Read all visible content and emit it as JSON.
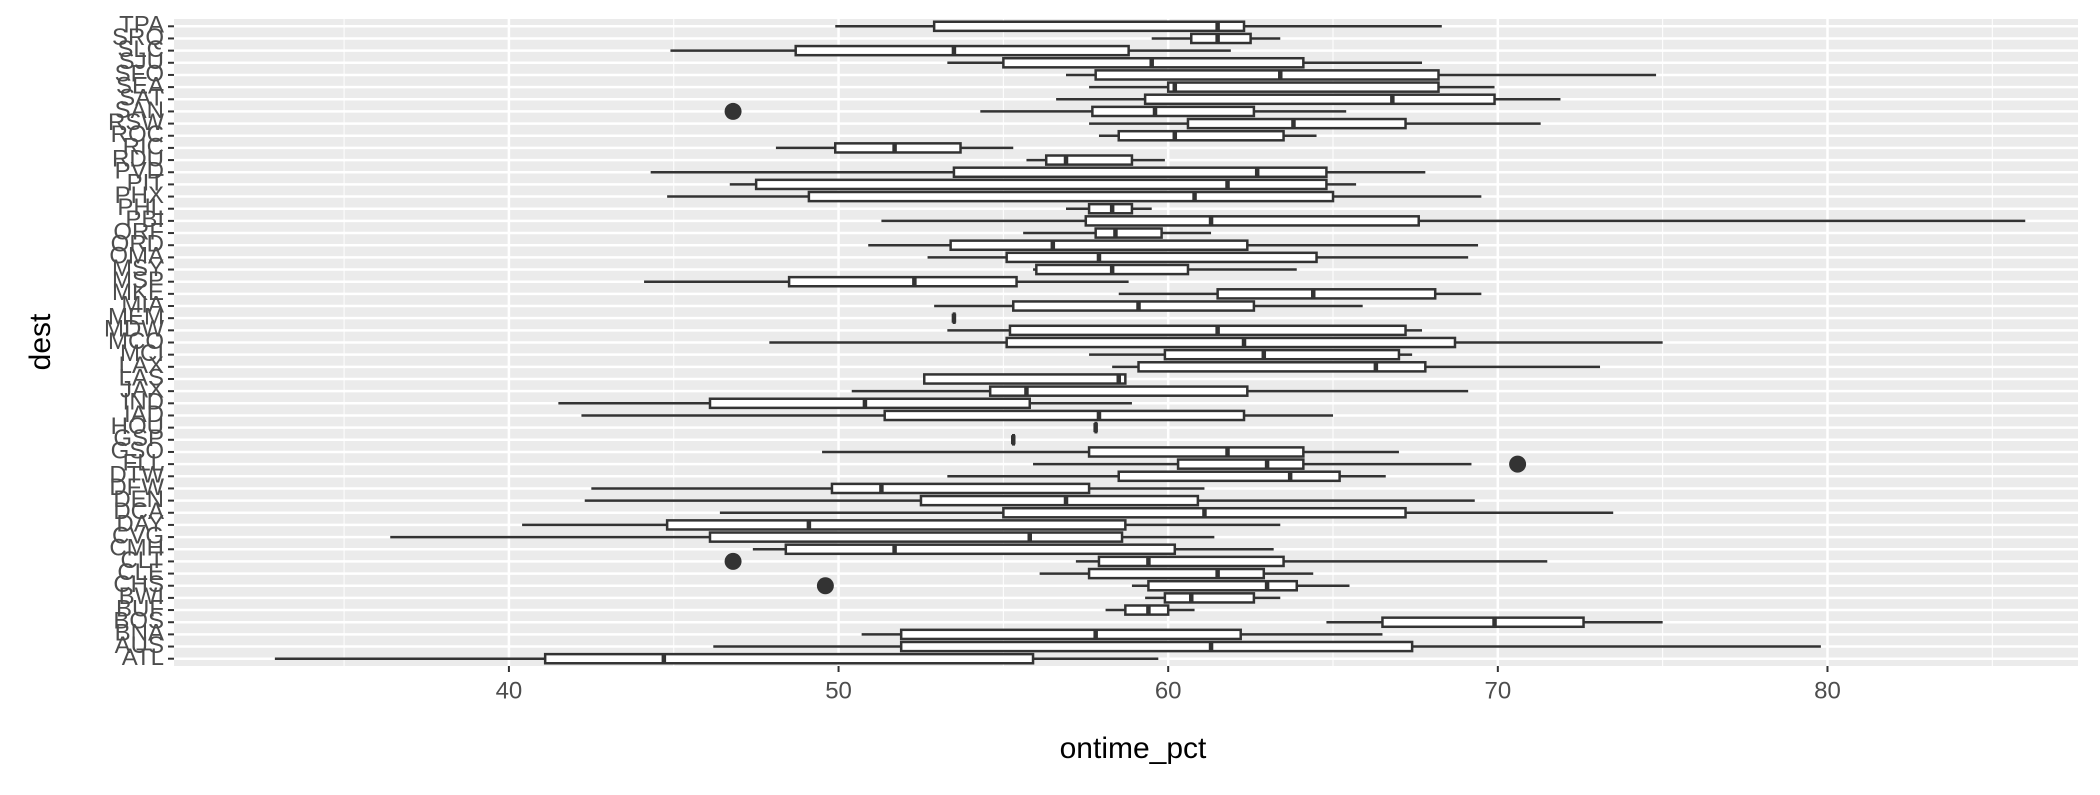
{
  "chart_data": {
    "type": "boxplot",
    "orientation": "horizontal",
    "x_label": "ontime_pct",
    "y_label": "dest",
    "categories": [
      "ATL",
      "AUS",
      "BNA",
      "BOS",
      "BUF",
      "BWI",
      "CHS",
      "CLE",
      "CLT",
      "CMH",
      "CVG",
      "DAY",
      "DCA",
      "DEN",
      "DFW",
      "DTW",
      "FLL",
      "GSO",
      "GSP",
      "HOU",
      "IAD",
      "IND",
      "JAX",
      "LAS",
      "LAX",
      "MCI",
      "MCO",
      "MDW",
      "MEM",
      "MIA",
      "MKE",
      "MSP",
      "MSY",
      "OMA",
      "ORD",
      "ORF",
      "PBI",
      "PHL",
      "PHX",
      "PIT",
      "PVD",
      "RDU",
      "RIC",
      "ROC",
      "RSW",
      "SAN",
      "SAT",
      "SEA",
      "SFO",
      "SJU",
      "SLC",
      "SRQ",
      "TPA"
    ],
    "low": [
      32.9,
      46.2,
      50.7,
      64.8,
      58.1,
      59.3,
      58.9,
      56.1,
      57.2,
      47.4,
      36.4,
      40.4,
      46.4,
      42.3,
      42.5,
      53.3,
      55.9,
      49.5,
      55.3,
      57.8,
      42.2,
      41.5,
      50.4,
      54.8,
      58.3,
      57.6,
      47.9,
      53.3,
      53.5,
      52.9,
      58.5,
      44.1,
      55.9,
      52.7,
      50.9,
      55.6,
      51.3,
      56.9,
      44.8,
      46.7,
      44.3,
      55.7,
      48.1,
      57.9,
      57.6,
      54.3,
      56.6,
      57.6,
      56.9,
      53.3,
      44.9,
      59.5,
      49.9
    ],
    "q1": [
      41.1,
      51.9,
      51.9,
      66.5,
      58.7,
      59.9,
      59.4,
      57.6,
      57.9,
      48.4,
      46.1,
      44.8,
      55.0,
      52.5,
      49.8,
      58.5,
      60.3,
      57.6,
      55.3,
      57.8,
      51.4,
      46.1,
      54.6,
      52.6,
      59.1,
      59.9,
      55.1,
      55.2,
      53.5,
      55.3,
      61.5,
      48.5,
      56.0,
      55.1,
      53.4,
      57.8,
      57.5,
      57.6,
      49.1,
      47.5,
      53.5,
      56.3,
      49.9,
      58.5,
      60.6,
      57.7,
      59.3,
      60.0,
      57.8,
      55.0,
      48.7,
      60.7,
      52.9
    ],
    "median": [
      44.7,
      61.3,
      57.8,
      69.9,
      59.4,
      60.7,
      63.0,
      61.5,
      59.4,
      51.7,
      55.8,
      49.1,
      61.1,
      56.9,
      51.3,
      63.7,
      63.0,
      61.8,
      55.3,
      57.8,
      57.9,
      50.8,
      55.7,
      58.5,
      66.3,
      62.9,
      62.3,
      61.5,
      53.5,
      59.1,
      64.4,
      52.3,
      58.3,
      57.9,
      56.5,
      58.4,
      61.3,
      58.3,
      60.8,
      61.8,
      62.7,
      56.9,
      51.7,
      60.2,
      63.8,
      59.6,
      66.8,
      60.2,
      63.4,
      59.5,
      53.5,
      61.5,
      61.5
    ],
    "q3": [
      55.9,
      67.4,
      62.2,
      72.6,
      60.0,
      62.6,
      63.9,
      62.9,
      63.5,
      60.2,
      58.6,
      58.7,
      67.2,
      60.9,
      57.6,
      65.2,
      64.1,
      64.1,
      55.3,
      57.8,
      62.3,
      55.8,
      62.4,
      58.7,
      67.8,
      67.0,
      68.7,
      67.2,
      53.5,
      62.6,
      68.1,
      55.4,
      60.6,
      64.5,
      62.4,
      59.8,
      67.6,
      58.9,
      65.0,
      64.8,
      64.8,
      58.9,
      53.7,
      63.5,
      67.2,
      62.6,
      69.9,
      68.2,
      68.2,
      64.1,
      58.8,
      62.5,
      62.3
    ],
    "high": [
      59.7,
      79.8,
      66.5,
      75.0,
      60.8,
      63.4,
      65.5,
      64.4,
      71.5,
      63.2,
      61.4,
      63.4,
      73.5,
      69.3,
      61.1,
      66.6,
      69.2,
      67.0,
      55.3,
      57.8,
      65.0,
      58.9,
      69.1,
      58.7,
      73.1,
      67.4,
      75.0,
      67.7,
      53.5,
      65.9,
      69.5,
      58.8,
      63.9,
      69.1,
      69.4,
      61.3,
      86.0,
      59.5,
      69.5,
      65.7,
      67.8,
      59.9,
      55.3,
      64.5,
      71.3,
      65.4,
      71.9,
      69.9,
      74.8,
      67.7,
      61.9,
      63.4,
      68.3
    ],
    "outliers": [
      [],
      [],
      [],
      [],
      [],
      [],
      [
        49.6
      ],
      [],
      [
        46.8
      ],
      [],
      [],
      [],
      [],
      [],
      [],
      [],
      [
        70.6
      ],
      [],
      [],
      [],
      [],
      [],
      [],
      [],
      [],
      [],
      [],
      [],
      [],
      [],
      [],
      [],
      [],
      [],
      [],
      [],
      [],
      [],
      [],
      [],
      [],
      [],
      [],
      [],
      [],
      [
        46.8
      ],
      [],
      [],
      [],
      [],
      [],
      [],
      []
    ],
    "box_fill": "#ffffff",
    "line_color": "#333333",
    "panel_color": "#ebebeb",
    "xlim": [
      29.84,
      87.6
    ],
    "xticks": [
      40,
      50,
      60,
      70,
      80
    ],
    "grid": true
  }
}
